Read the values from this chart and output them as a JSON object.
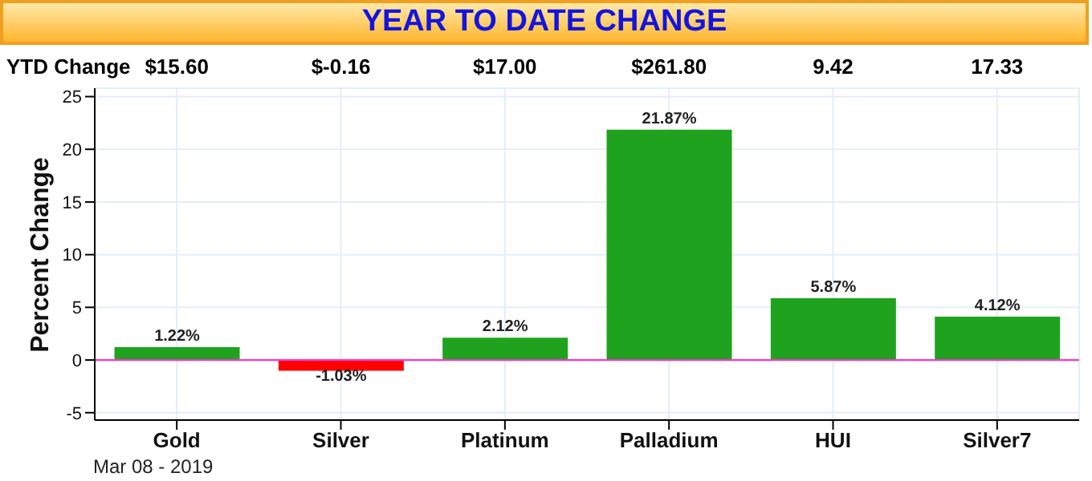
{
  "chart_data": {
    "type": "bar",
    "title": "YEAR TO DATE CHANGE",
    "ylabel": "Percent Change",
    "categories": [
      "Gold",
      "Silver",
      "Platinum",
      "Palladium",
      "HUI",
      "Silver7"
    ],
    "values": [
      1.22,
      -1.03,
      2.12,
      21.87,
      5.87,
      4.12
    ],
    "colors": [
      "#1fa31f",
      "#ff0000",
      "#1fa31f",
      "#1fa31f",
      "#1fa31f",
      "#1fa31f"
    ],
    "value_labels": [
      "1.22%",
      "-1.03%",
      "2.12%",
      "21.87%",
      "5.87%",
      "4.12%"
    ],
    "ylim": [
      -5.7,
      25.8
    ],
    "yticks": [
      -5,
      0,
      5,
      10,
      15,
      20,
      25
    ],
    "grid": true,
    "ref_lines": [
      {
        "axis": "y",
        "value": 0,
        "color": "#ff33cc"
      }
    ],
    "annotations": [
      "YTD Change",
      "$15.60",
      "$-0.16",
      "$17.00",
      "$261.80",
      "9.42",
      "17.33",
      "Mar 08 - 2019"
    ]
  }
}
